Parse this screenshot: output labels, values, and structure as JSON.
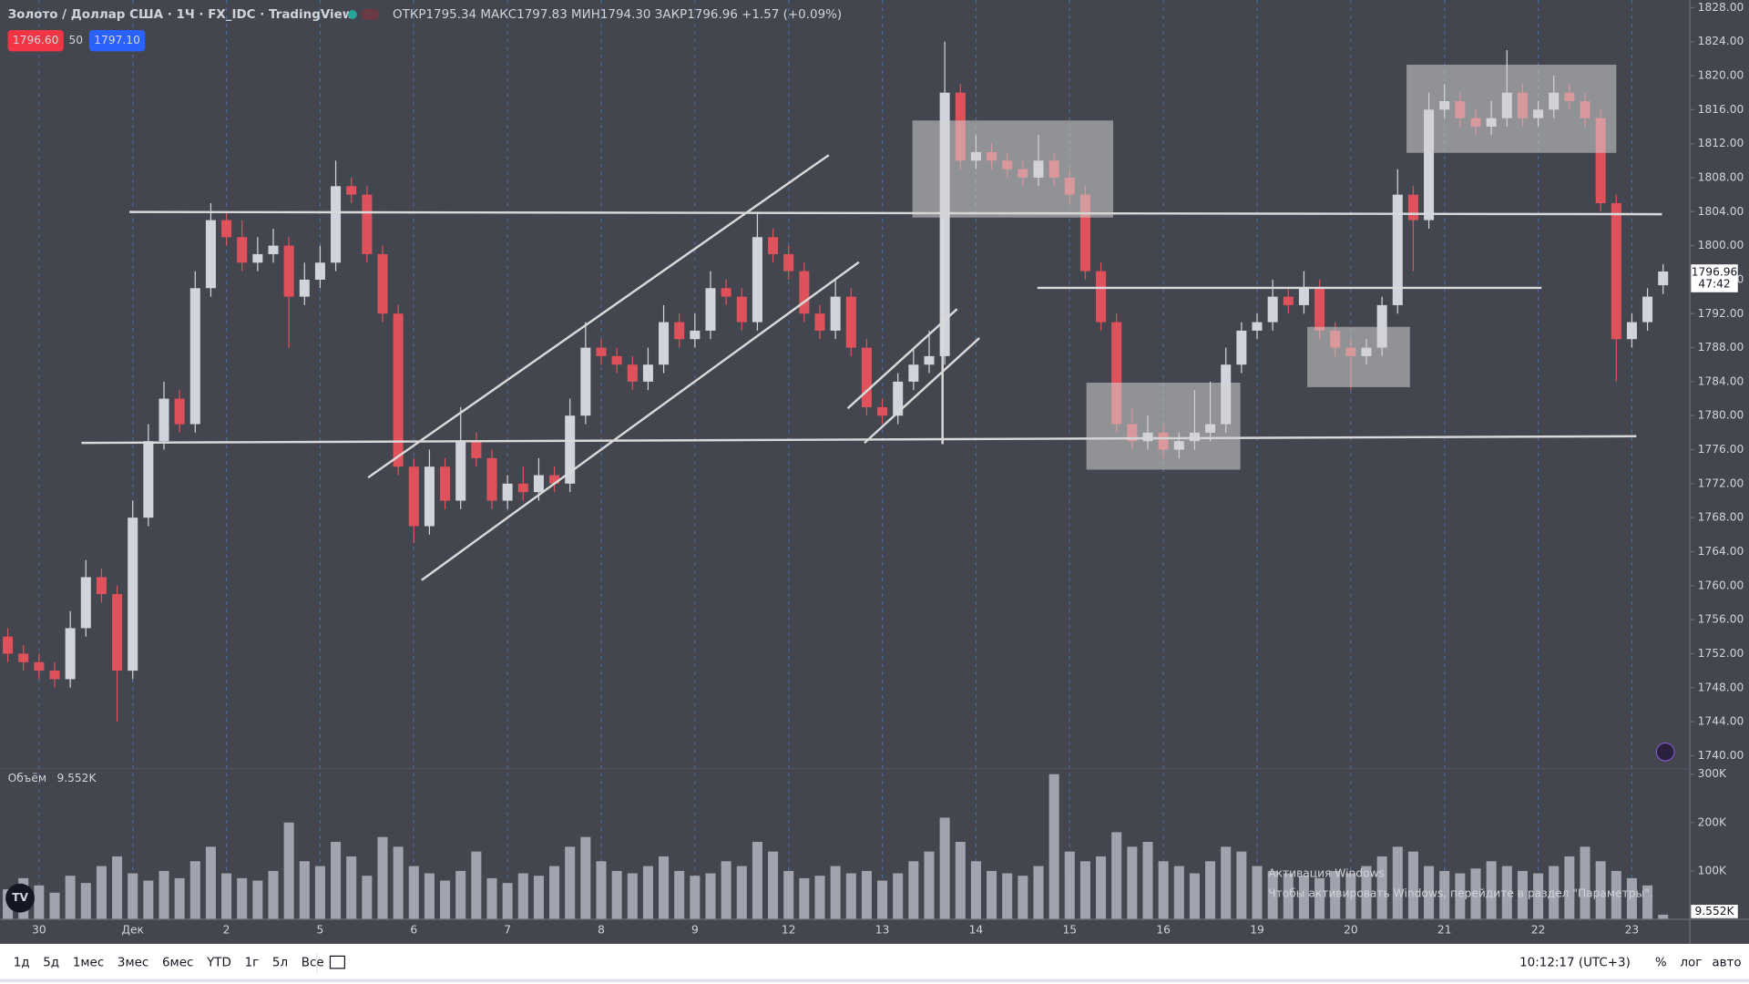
{
  "header": {
    "symbol": "Золото / Доллар США · 1Ч · FX_IDC · TradingView",
    "ohlc": "ОТКР1795.34 МАКС1797.83 МИН1794.30 ЗАКР1796.96 +1.57 (+0.09%)",
    "bid": "1796.60",
    "spread": "50",
    "ask": "1797.10"
  },
  "chart_data": {
    "type": "candlestick",
    "categories": [
      null,
      null,
      "30",
      null,
      null,
      null,
      null,
      null,
      "Дек",
      null,
      null,
      null,
      null,
      null,
      "2",
      null,
      null,
      null,
      null,
      null,
      "5",
      null,
      null,
      null,
      null,
      null,
      "6",
      null,
      null,
      null,
      null,
      null,
      "7",
      null,
      null,
      null,
      null,
      null,
      "8",
      null,
      null,
      null,
      null,
      null,
      "9",
      null,
      null,
      null,
      null,
      null,
      "12",
      null,
      null,
      null,
      null,
      null,
      "13",
      null,
      null,
      null,
      null,
      null,
      "14",
      null,
      null,
      null,
      null,
      null,
      "15",
      null,
      null,
      null,
      null,
      null,
      "16",
      null,
      null,
      null,
      null,
      null,
      "19",
      null,
      null,
      null,
      null,
      null,
      "20",
      null,
      null,
      null,
      null,
      null,
      "21",
      null,
      null,
      null,
      null,
      null,
      "22",
      null,
      null,
      null,
      null,
      null,
      "23",
      null,
      null
    ],
    "open": [
      1754,
      1752,
      1751,
      1750,
      1749,
      1755,
      1761,
      1759,
      1750,
      1768,
      1777,
      1782,
      1779,
      1795,
      1803,
      1801,
      1798,
      1799,
      1800,
      1794,
      1796,
      1798,
      1807,
      1806,
      1799,
      1792,
      1774,
      1767,
      1774,
      1770,
      1777,
      1775,
      1770,
      1772,
      1771,
      1773,
      1772,
      1780,
      1788,
      1787,
      1786,
      1784,
      1786,
      1791,
      1789,
      1790,
      1795,
      1794,
      1791,
      1801,
      1799,
      1797,
      1792,
      1790,
      1794,
      1788,
      1781,
      1780,
      1784,
      1786,
      1787,
      1818,
      1810,
      1811,
      1810,
      1809,
      1808,
      1810,
      1808,
      1806,
      1797,
      1791,
      1779,
      1777,
      1778,
      1776,
      1777,
      1778,
      1779,
      1786,
      1790,
      1791,
      1794,
      1793,
      1795,
      1790,
      1788,
      1787,
      1788,
      1793,
      1806,
      1803,
      1816,
      1817,
      1815,
      1814,
      1815,
      1818,
      1815,
      1816,
      1818,
      1817,
      1815,
      1805,
      1789,
      1791,
      1795.34
    ],
    "high": [
      1755,
      1753,
      1752,
      1751,
      1757,
      1763,
      1762,
      1760,
      1770,
      1779,
      1784,
      1783,
      1797,
      1805,
      1804,
      1803,
      1801,
      1802,
      1801,
      1798,
      1800,
      1810,
      1808,
      1807,
      1800,
      1793,
      1775,
      1776,
      1775,
      1781,
      1778,
      1776,
      1773,
      1774,
      1775,
      1774,
      1782,
      1791,
      1789,
      1788,
      1787,
      1788,
      1793,
      1792,
      1792,
      1797,
      1796,
      1795,
      1804,
      1802,
      1800,
      1798,
      1793,
      1796,
      1795,
      1789,
      1782,
      1785,
      1788,
      1790,
      1824,
      1819,
      1813,
      1812,
      1811,
      1810,
      1813,
      1811,
      1809,
      1807,
      1798,
      1792,
      1781,
      1780,
      1779,
      1778,
      1783,
      1784,
      1788,
      1791,
      1792,
      1796,
      1795,
      1797,
      1796,
      1791,
      1789,
      1789,
      1794,
      1809,
      1807,
      1818,
      1819,
      1818,
      1816,
      1817,
      1823,
      1819,
      1817,
      1820,
      1819,
      1818,
      1816,
      1806,
      1792,
      1795,
      1797.83
    ],
    "low": [
      1751,
      1750,
      1749,
      1748,
      1748,
      1754,
      1758,
      1744,
      1749,
      1767,
      1776,
      1778,
      1778,
      1794,
      1800,
      1797,
      1797,
      1798,
      1788,
      1793,
      1795,
      1797,
      1805,
      1798,
      1791,
      1773,
      1765,
      1766,
      1769,
      1769,
      1774,
      1769,
      1769,
      1770,
      1770,
      1771,
      1771,
      1779,
      1786,
      1785,
      1783,
      1783,
      1785,
      1788,
      1788,
      1789,
      1793,
      1790,
      1790,
      1798,
      1796,
      1791,
      1789,
      1789,
      1787,
      1780,
      1779,
      1779,
      1783,
      1785,
      1786,
      1809,
      1809,
      1809,
      1808,
      1807,
      1807,
      1807,
      1805,
      1796,
      1790,
      1778,
      1776,
      1776,
      1775,
      1775,
      1776,
      1777,
      1778,
      1785,
      1789,
      1790,
      1792,
      1792,
      1789,
      1787,
      1783,
      1786,
      1787,
      1792,
      1797,
      1802,
      1815,
      1814,
      1813,
      1813,
      1814,
      1814,
      1814,
      1815,
      1816,
      1814,
      1804,
      1784,
      1788,
      1790,
      1794.3
    ],
    "close": [
      1752,
      1751,
      1750,
      1749,
      1755,
      1761,
      1759,
      1750,
      1768,
      1777,
      1782,
      1779,
      1795,
      1803,
      1801,
      1798,
      1799,
      1800,
      1794,
      1796,
      1798,
      1807,
      1806,
      1799,
      1792,
      1774,
      1767,
      1774,
      1770,
      1777,
      1775,
      1770,
      1772,
      1771,
      1773,
      1772,
      1780,
      1788,
      1787,
      1786,
      1784,
      1786,
      1791,
      1789,
      1790,
      1795,
      1794,
      1791,
      1801,
      1799,
      1797,
      1792,
      1790,
      1794,
      1788,
      1781,
      1780,
      1784,
      1786,
      1787,
      1818,
      1810,
      1811,
      1810,
      1809,
      1808,
      1810,
      1808,
      1806,
      1797,
      1791,
      1779,
      1777,
      1778,
      1776,
      1777,
      1778,
      1779,
      1786,
      1790,
      1791,
      1794,
      1793,
      1795,
      1790,
      1788,
      1787,
      1788,
      1793,
      1806,
      1803,
      1816,
      1817,
      1815,
      1814,
      1815,
      1818,
      1815,
      1816,
      1818,
      1817,
      1815,
      1805,
      1789,
      1791,
      1794,
      1796.96
    ],
    "up_color": "#d1d4dc",
    "down_color": "#e0525b",
    "ylim": [
      1738.6,
      1828.9
    ],
    "yticks": [
      {
        "value": 1740,
        "label": "1740.00"
      },
      {
        "value": 1744,
        "label": "1744.00"
      },
      {
        "value": 1748,
        "label": "1748.00"
      },
      {
        "value": 1752,
        "label": "1752.00"
      },
      {
        "value": 1756,
        "label": "1756.00"
      },
      {
        "value": 1760,
        "label": "1760.00"
      },
      {
        "value": 1764,
        "label": "1764.00"
      },
      {
        "value": 1768,
        "label": "1768.00"
      },
      {
        "value": 1772,
        "label": "1772.00"
      },
      {
        "value": 1776,
        "label": "1776.00"
      },
      {
        "value": 1780,
        "label": "1780.00"
      },
      {
        "value": 1784,
        "label": "1784.00"
      },
      {
        "value": 1788,
        "label": "1788.00"
      },
      {
        "value": 1792,
        "label": "1792.00"
      },
      {
        "value": 1796,
        "label": "1796.00"
      },
      {
        "value": 1800,
        "label": "1800.00"
      },
      {
        "value": 1804,
        "label": "1804.00"
      },
      {
        "value": 1808,
        "label": "1808.00"
      },
      {
        "value": 1812,
        "label": "1812.00"
      },
      {
        "value": 1816,
        "label": "1816.00"
      },
      {
        "value": 1820,
        "label": "1820.00"
      },
      {
        "value": 1824,
        "label": "1824.00"
      },
      {
        "value": 1828,
        "label": "1828.00"
      }
    ],
    "last_price": 1796.96,
    "countdown": "47:42",
    "volume": {
      "label": "Объём",
      "last_label": "9.552K",
      "color": "#b2b5be",
      "values": [
        62000,
        85000,
        70000,
        55000,
        90000,
        75000,
        110000,
        130000,
        95000,
        80000,
        100000,
        85000,
        120000,
        150000,
        95000,
        85000,
        80000,
        100000,
        200000,
        120000,
        110000,
        160000,
        130000,
        90000,
        170000,
        150000,
        110000,
        95000,
        80000,
        100000,
        140000,
        85000,
        75000,
        95000,
        90000,
        110000,
        150000,
        170000,
        120000,
        100000,
        95000,
        110000,
        130000,
        100000,
        90000,
        95000,
        120000,
        110000,
        160000,
        140000,
        100000,
        85000,
        90000,
        110000,
        95000,
        100000,
        80000,
        95000,
        120000,
        140000,
        210000,
        160000,
        120000,
        100000,
        95000,
        90000,
        110000,
        300000,
        140000,
        120000,
        130000,
        180000,
        150000,
        160000,
        120000,
        110000,
        95000,
        120000,
        150000,
        140000,
        110000,
        100000,
        95000,
        90000,
        85000,
        100000,
        95000,
        110000,
        130000,
        150000,
        140000,
        110000,
        100000,
        95000,
        105000,
        120000,
        110000,
        100000,
        95000,
        110000,
        130000,
        150000,
        120000,
        100000,
        85000,
        70000,
        9552
      ],
      "ylim": [
        0,
        309000
      ],
      "yticks": [
        {
          "value": 100000,
          "label": "100K"
        },
        {
          "value": 200000,
          "label": "200K"
        },
        {
          "value": 300000,
          "label": "300K"
        }
      ]
    }
  },
  "toolbar": {
    "ranges": [
      "1д",
      "5д",
      "1мес",
      "3мес",
      "6мес",
      "YTD",
      "1г",
      "5л",
      "Все"
    ],
    "time": "10:12:17 (UTC+3)",
    "options": [
      "%",
      "лог",
      "авто"
    ]
  },
  "watermark": {
    "title": "Активация Windows",
    "text": "Чтобы активировать Windows, перейдите в раздел \"Параметры\"."
  }
}
